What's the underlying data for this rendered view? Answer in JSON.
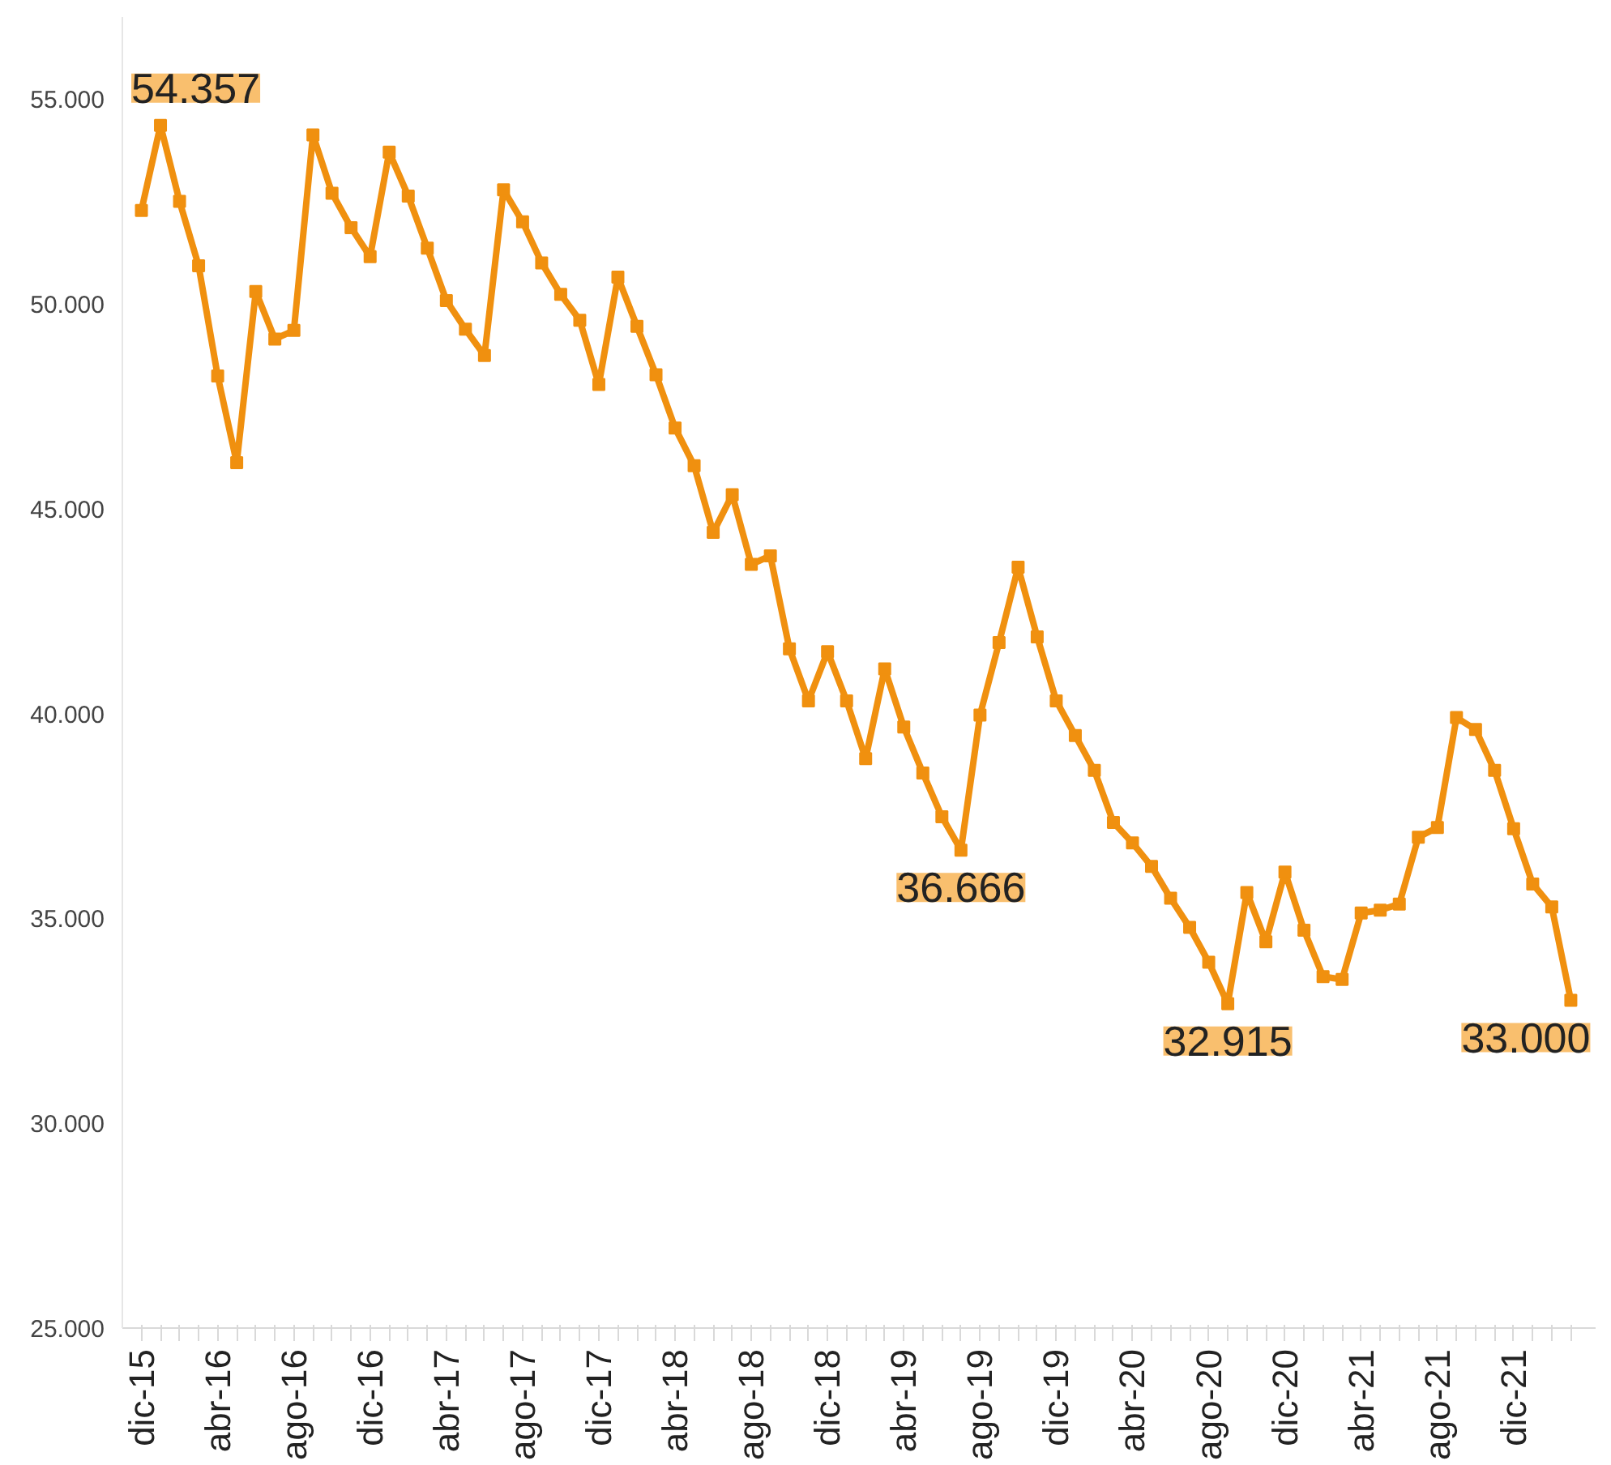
{
  "chart_data": {
    "type": "line",
    "categories": [
      "dic-15",
      null,
      null,
      null,
      "abr-16",
      null,
      null,
      null,
      "ago-16",
      null,
      null,
      null,
      "dic-16",
      null,
      null,
      null,
      "abr-17",
      null,
      null,
      null,
      "ago-17",
      null,
      null,
      null,
      "dic-17",
      null,
      null,
      null,
      "abr-18",
      null,
      null,
      null,
      "ago-18",
      null,
      null,
      null,
      "dic-18",
      null,
      null,
      null,
      "abr-19",
      null,
      null,
      null,
      "ago-19",
      null,
      null,
      null,
      "dic-19",
      null,
      null,
      null,
      "abr-20",
      null,
      null,
      null,
      "ago-20",
      null,
      null,
      null,
      "dic-20",
      null,
      null,
      null,
      "abr-21",
      null,
      null,
      null,
      "ago-21",
      null,
      null,
      null,
      "dic-21",
      null,
      null,
      null
    ],
    "series": [
      {
        "color": "#f0900f",
        "values": [
          52280,
          54357,
          52500,
          50930,
          48240,
          46120,
          50300,
          49140,
          49350,
          54120,
          52700,
          51860,
          51150,
          53700,
          52630,
          51360,
          50080,
          49380,
          48740,
          52780,
          52000,
          51000,
          50230,
          49600,
          48030,
          50650,
          49450,
          48270,
          46970,
          46050,
          44420,
          45340,
          43640,
          43850,
          41580,
          40310,
          41510,
          40310,
          38900,
          41090,
          39670,
          38550,
          37480,
          36666,
          39960,
          41730,
          43570,
          41870,
          40310,
          39460,
          38610,
          37340,
          36840,
          36270,
          35490,
          34780,
          33930,
          32915,
          35630,
          34430,
          36130,
          34710,
          33580,
          33510,
          35130,
          35200,
          35350,
          36980,
          37220,
          39900,
          39610,
          38610,
          37190,
          35840,
          35280,
          33000
        ],
        "value_labels": [
          null,
          "54.357",
          null,
          null,
          null,
          null,
          null,
          null,
          null,
          null,
          null,
          null,
          null,
          null,
          null,
          null,
          null,
          null,
          null,
          null,
          null,
          null,
          null,
          null,
          null,
          null,
          null,
          null,
          null,
          null,
          null,
          null,
          null,
          null,
          null,
          null,
          null,
          null,
          null,
          null,
          null,
          null,
          null,
          "36.666",
          null,
          null,
          null,
          null,
          null,
          null,
          null,
          null,
          null,
          null,
          null,
          null,
          null,
          "32.915",
          null,
          null,
          null,
          null,
          null,
          null,
          null,
          null,
          null,
          null,
          null,
          null,
          null,
          null,
          null,
          null,
          null,
          "33.000"
        ]
      }
    ],
    "ylim": [
      25000,
      57000
    ],
    "yticks": [
      {
        "value": 25000,
        "label": "25.000"
      },
      {
        "value": 30000,
        "label": "30.000"
      },
      {
        "value": 35000,
        "label": "35.000"
      },
      {
        "value": 40000,
        "label": "40.000"
      },
      {
        "value": 45000,
        "label": "45.000"
      },
      {
        "value": 50000,
        "label": "50.000"
      },
      {
        "value": 55000,
        "label": "55.000"
      }
    ],
    "marker": "square",
    "grid": false
  }
}
